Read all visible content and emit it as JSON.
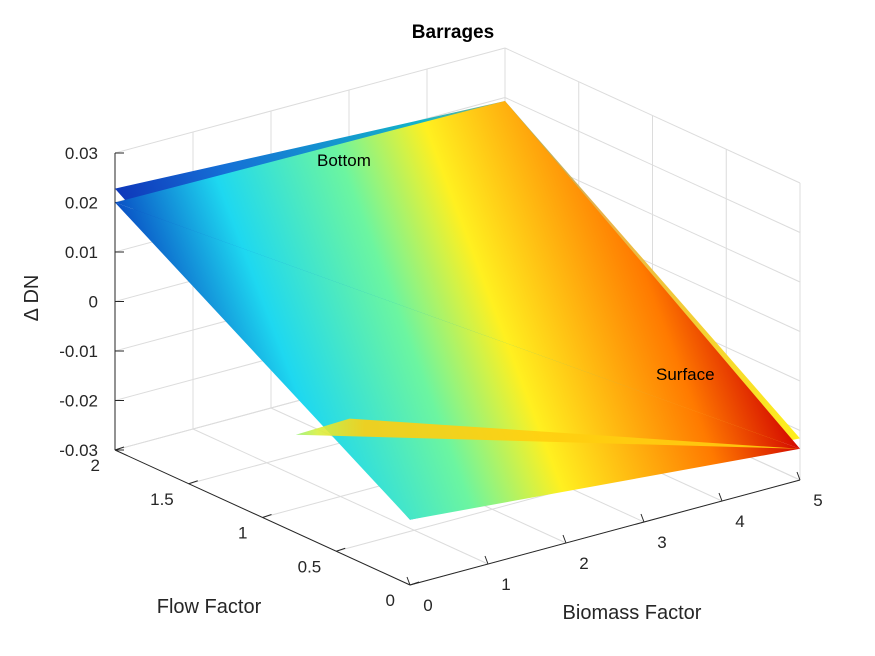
{
  "chart_data": {
    "type": "surface",
    "title": "Barrages",
    "xlabel": "Biomass Factor",
    "ylabel": "Flow Factor",
    "zlabel": "Δ DN",
    "xlim": [
      0,
      5
    ],
    "ylim": [
      0,
      2
    ],
    "zlim": [
      -0.03,
      0.03
    ],
    "xticks": [
      "0",
      "1",
      "2",
      "3",
      "4",
      "5"
    ],
    "yticks": [
      "0",
      "0.5",
      "1",
      "1.5",
      "2"
    ],
    "zticks": [
      "-0.03",
      "-0.02",
      "-0.01",
      "0",
      "0.01",
      "0.02",
      "0.03"
    ],
    "grid": true,
    "colormap": "jet",
    "annotations": [
      "Bottom",
      "Surface"
    ],
    "surfaces": [
      {
        "x": [
          0,
          5
        ],
        "y": [
          0,
          2
        ],
        "z": [
          [
            -0.0168,
            -0.0216
          ],
          [
            0.0228,
            0.0193
          ]
        ]
      },
      {
        "x": [
          0,
          5
        ],
        "y": [
          0,
          2
        ],
        "z": [
          [
            -0.0168,
            -0.0237
          ],
          [
            0.02,
            0.0193
          ]
        ]
      }
    ]
  }
}
